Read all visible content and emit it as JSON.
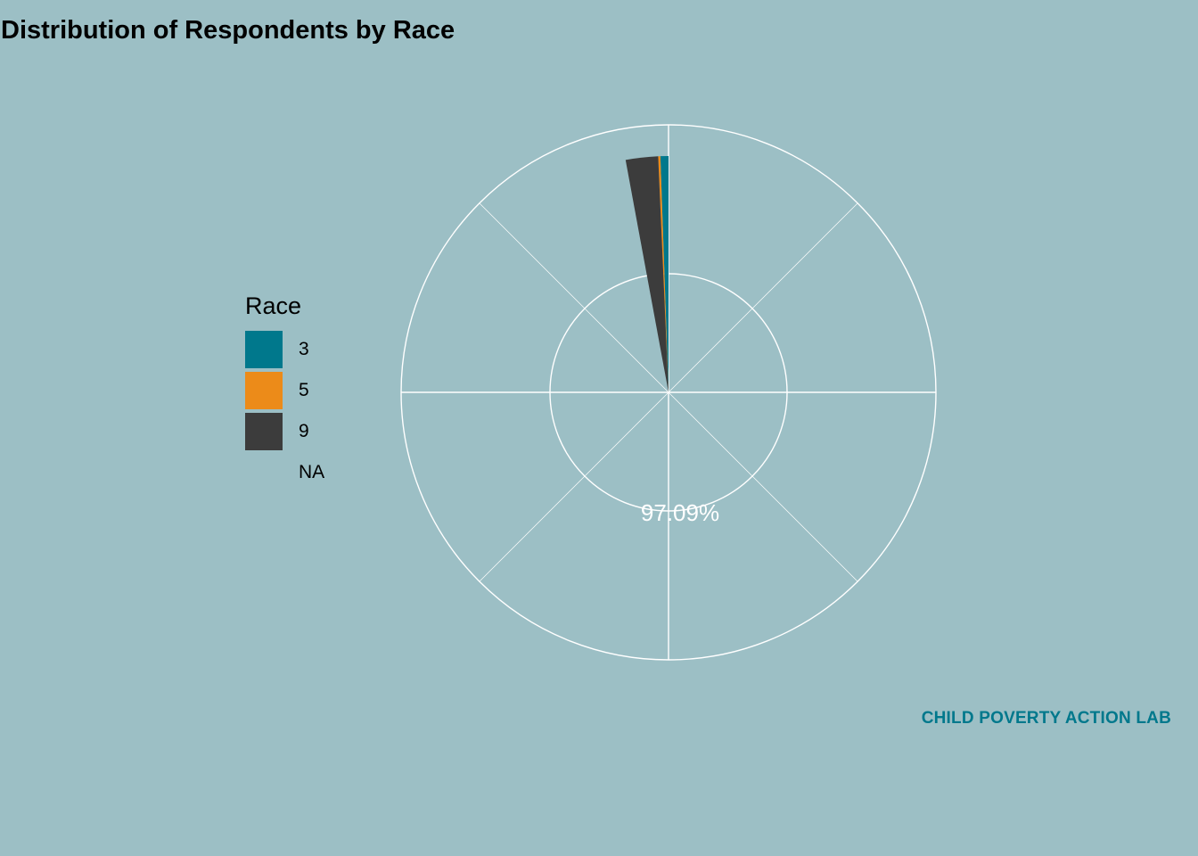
{
  "chart_data": {
    "type": "pie",
    "title": "Distribution of Respondents by Race",
    "legend_title": "Race",
    "legend_position": "left",
    "series": [
      {
        "name": "3",
        "value": 0.55,
        "color": "#00788c"
      },
      {
        "name": "5",
        "value": 0.15,
        "color": "#ec8b19"
      },
      {
        "name": "9",
        "value": 2.21,
        "color": "#3c3c3c"
      },
      {
        "name": "NA",
        "value": 97.09,
        "color": "#9cbfc5"
      }
    ],
    "labels": [
      {
        "text": "97.09%",
        "series": "NA"
      }
    ],
    "polar_grid": true
  },
  "brand": {
    "watermark": "CHILD POVERTY ACTION LAB",
    "watermark_color": "#00788c",
    "background": "#9cbfc5"
  }
}
